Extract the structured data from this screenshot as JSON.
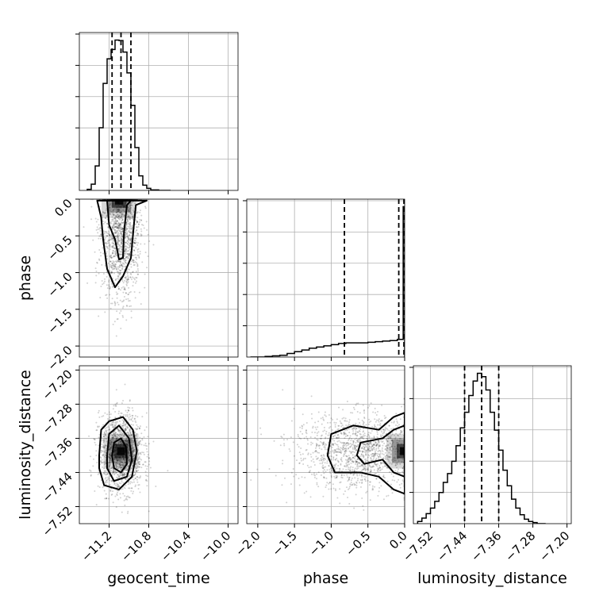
{
  "chart_data": {
    "type": "corner",
    "parameters": [
      "geocent_time",
      "phase",
      "luminosity_distance"
    ],
    "axes": {
      "geocent_time": {
        "label": "geocent_time",
        "lim": [
          -11.5,
          -9.9
        ],
        "ticks": [
          -11.2,
          -10.8,
          -10.4,
          -10.0
        ],
        "tick_labels": [
          "−11.2",
          "−10.8",
          "−10.4",
          "−10.0"
        ]
      },
      "phase": {
        "label": "phase",
        "lim": [
          -2.15,
          0.0
        ],
        "ticks": [
          -2.0,
          -1.5,
          -1.0,
          -0.5,
          0.0
        ],
        "tick_labels": [
          "−2.0",
          "−1.5",
          "−1.0",
          "−0.5",
          "0.0"
        ]
      },
      "luminosity_distance": {
        "label": "luminosity_distance",
        "lim": [
          -7.56,
          -7.19
        ],
        "ticks": [
          -7.52,
          -7.44,
          -7.36,
          -7.28,
          -7.2
        ],
        "tick_labels": [
          "−7.52",
          "−7.44",
          "−7.36",
          "−7.28",
          "−7.20"
        ]
      }
    },
    "marginals": [
      {
        "param": "geocent_time",
        "edges": [
          -11.42,
          -11.38,
          -11.34,
          -11.3,
          -11.26,
          -11.22,
          -11.18,
          -11.14,
          -11.1,
          -11.06,
          -11.02,
          -10.98,
          -10.94,
          -10.9,
          -10.86,
          -10.82,
          -10.78,
          -10.74,
          -10.7,
          -10.66,
          -10.62,
          -10.58
        ],
        "counts": [
          2,
          12,
          47,
          120,
          205,
          252,
          270,
          288,
          287,
          265,
          225,
          163,
          82,
          28,
          10,
          4,
          1,
          1,
          0,
          0,
          0
        ],
        "quantiles": [
          -11.17,
          -11.08,
          -10.98
        ]
      },
      {
        "param": "phase",
        "edges": [
          -2.1,
          -2.0,
          -1.9,
          -1.8,
          -1.7,
          -1.6,
          -1.5,
          -1.4,
          -1.3,
          -1.2,
          -1.1,
          -1.0,
          -0.9,
          -0.8,
          -0.7,
          -0.6,
          -0.5,
          -0.4,
          -0.3,
          -0.2,
          -0.1,
          -0.02,
          0.0
        ],
        "counts": [
          0,
          0,
          1,
          2,
          3,
          6,
          9,
          12,
          15,
          17,
          19,
          21,
          23,
          24,
          24,
          24,
          25,
          26,
          27,
          28,
          30,
          255
        ],
        "quantiles": [
          -0.82,
          -0.08,
          -0.01
        ]
      },
      {
        "param": "luminosity_distance",
        "edges": [
          -7.55,
          -7.54,
          -7.53,
          -7.52,
          -7.51,
          -7.5,
          -7.49,
          -7.48,
          -7.47,
          -7.46,
          -7.45,
          -7.44,
          -7.43,
          -7.42,
          -7.41,
          -7.4,
          -7.39,
          -7.38,
          -7.37,
          -7.36,
          -7.35,
          -7.34,
          -7.33,
          -7.32,
          -7.31,
          -7.3,
          -7.29,
          -7.28,
          -7.27,
          -7.26,
          -7.25
        ],
        "counts": [
          2,
          5,
          9,
          14,
          20,
          28,
          37,
          45,
          56,
          70,
          86,
          100,
          115,
          128,
          135,
          132,
          120,
          100,
          84,
          66,
          48,
          34,
          22,
          14,
          8,
          4,
          2,
          1,
          0,
          0
        ],
        "quantiles": [
          -7.44,
          -7.4,
          -7.36
        ]
      }
    ],
    "joints": [
      {
        "x": "geocent_time",
        "y": "phase",
        "scatter": {
          "center": [
            -11.08,
            -0.45
          ],
          "sd": [
            0.1,
            0.45
          ],
          "n": 1500
        },
        "contours": [
          [
            [
              -11.32,
              -0.02
            ],
            [
              -11.28,
              -0.25
            ],
            [
              -11.26,
              -0.55
            ],
            [
              -11.22,
              -0.95
            ],
            [
              -11.14,
              -1.2
            ],
            [
              -11.06,
              -1.05
            ],
            [
              -10.98,
              -0.8
            ],
            [
              -10.95,
              -0.35
            ],
            [
              -10.93,
              -0.08
            ],
            [
              -10.82,
              -0.02
            ]
          ],
          [
            [
              -11.22,
              -0.02
            ],
            [
              -11.2,
              -0.35
            ],
            [
              -11.14,
              -0.55
            ],
            [
              -11.1,
              -0.82
            ],
            [
              -11.06,
              -0.8
            ],
            [
              -11.05,
              -0.45
            ],
            [
              -11.02,
              -0.08
            ],
            [
              -10.98,
              -0.02
            ]
          ]
        ],
        "density_peak": [
          -11.1,
          -0.02
        ]
      },
      {
        "x": "geocent_time",
        "y": "luminosity_distance",
        "scatter": {
          "center": [
            -11.08,
            -7.395
          ],
          "sd": [
            0.11,
            0.045
          ],
          "n": 1500
        },
        "contours": [
          [
            [
              -11.3,
              -7.4
            ],
            [
              -11.28,
              -7.34
            ],
            [
              -11.2,
              -7.32
            ],
            [
              -11.06,
              -7.31
            ],
            [
              -10.96,
              -7.34
            ],
            [
              -10.92,
              -7.39
            ],
            [
              -10.97,
              -7.45
            ],
            [
              -11.1,
              -7.48
            ],
            [
              -11.25,
              -7.47
            ],
            [
              -11.3,
              -7.43
            ]
          ],
          [
            [
              -11.22,
              -7.4
            ],
            [
              -11.2,
              -7.35
            ],
            [
              -11.1,
              -7.33
            ],
            [
              -11.0,
              -7.36
            ],
            [
              -10.97,
              -7.41
            ],
            [
              -11.02,
              -7.45
            ],
            [
              -11.15,
              -7.46
            ],
            [
              -11.22,
              -7.43
            ]
          ],
          [
            [
              -11.17,
              -7.4
            ],
            [
              -11.15,
              -7.37
            ],
            [
              -11.08,
              -7.36
            ],
            [
              -11.03,
              -7.38
            ],
            [
              -11.02,
              -7.42
            ],
            [
              -11.08,
              -7.44
            ],
            [
              -11.15,
              -7.43
            ]
          ]
        ],
        "density_peak": [
          -11.08,
          -7.39
        ]
      },
      {
        "x": "phase",
        "y": "luminosity_distance",
        "scatter": {
          "center": [
            -0.6,
            -7.39
          ],
          "sd": [
            0.45,
            0.045
          ],
          "n": 1500
        },
        "contours": [
          [
            [
              0.0,
              -7.3
            ],
            [
              -0.15,
              -7.31
            ],
            [
              -0.35,
              -7.34
            ],
            [
              -0.7,
              -7.33
            ],
            [
              -1.0,
              -7.35
            ],
            [
              -1.05,
              -7.4
            ],
            [
              -0.95,
              -7.44
            ],
            [
              -0.6,
              -7.44
            ],
            [
              -0.35,
              -7.45
            ],
            [
              -0.15,
              -7.48
            ],
            [
              0.0,
              -7.49
            ]
          ],
          [
            [
              0.0,
              -7.33
            ],
            [
              -0.15,
              -7.34
            ],
            [
              -0.3,
              -7.36
            ],
            [
              -0.6,
              -7.37
            ],
            [
              -0.65,
              -7.4
            ],
            [
              -0.55,
              -7.42
            ],
            [
              -0.3,
              -7.41
            ],
            [
              -0.15,
              -7.44
            ],
            [
              0.0,
              -7.45
            ]
          ]
        ],
        "density_peak": [
          -0.01,
          -7.39
        ]
      }
    ],
    "grid": true
  }
}
